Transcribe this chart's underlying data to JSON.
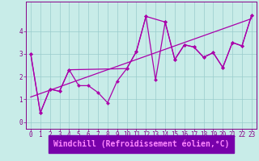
{
  "xlabel": "Windchill (Refroidissement éolien,°C)",
  "bg_color": "#c8ece8",
  "line_color": "#aa00aa",
  "grid_color": "#99cccc",
  "axis_color": "#880088",
  "tick_label_color": "#880088",
  "xlabel_color": "#cc00cc",
  "xlabel_bg": "#7700aa",
  "ylim": [
    -0.3,
    5.3
  ],
  "xlim": [
    -0.5,
    23.5
  ],
  "yticks": [
    0,
    1,
    2,
    3,
    4
  ],
  "xticks": [
    0,
    1,
    2,
    3,
    4,
    5,
    6,
    7,
    8,
    9,
    10,
    11,
    12,
    13,
    14,
    15,
    16,
    17,
    18,
    19,
    20,
    21,
    22,
    23
  ],
  "series1_x": [
    0,
    1,
    2,
    3,
    4,
    5,
    6,
    7,
    8,
    9,
    10,
    11,
    12,
    13,
    14,
    15,
    16,
    17,
    18,
    19,
    20,
    21,
    22,
    23
  ],
  "series1_y": [
    3.0,
    0.4,
    1.45,
    1.35,
    2.3,
    1.6,
    1.6,
    1.3,
    0.85,
    1.8,
    2.35,
    3.1,
    4.65,
    1.85,
    4.4,
    2.75,
    3.4,
    3.3,
    2.85,
    3.05,
    2.4,
    3.5,
    3.35,
    4.7
  ],
  "series2_x": [
    0,
    1,
    2,
    3,
    4,
    10,
    11,
    12,
    14,
    15,
    16,
    17,
    18,
    19,
    20,
    21,
    22,
    23
  ],
  "series2_y": [
    3.0,
    0.4,
    1.45,
    1.35,
    2.3,
    2.35,
    3.1,
    4.65,
    4.4,
    2.75,
    3.4,
    3.3,
    2.85,
    3.05,
    2.4,
    3.5,
    3.35,
    4.7
  ],
  "series3_x": [
    0,
    23
  ],
  "series3_y": [
    1.1,
    4.55
  ],
  "xlabel_fontsize": 7,
  "tick_fontsize": 5.5,
  "linewidth": 0.9,
  "markersize": 2.2
}
